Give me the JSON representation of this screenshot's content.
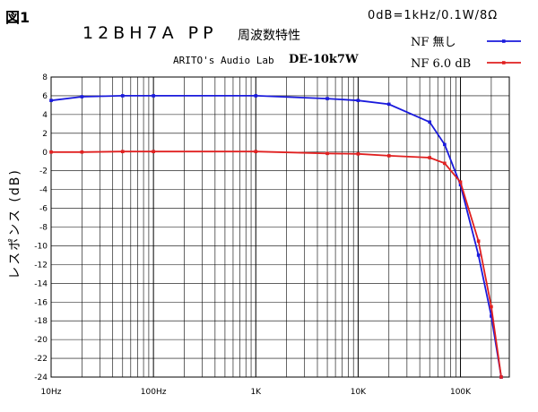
{
  "header": {
    "fig_label": "図1",
    "title": "12BH7A PP",
    "subtitle": "周波数特性",
    "reference": "0dB=1kHz/0.1W/8Ω",
    "credit": "ARITO's Audio Lab",
    "model": "DE-10k7W"
  },
  "colors": {
    "grid": "#000000",
    "nf_none": "#1a1adc",
    "nf_6db": "#e02020"
  },
  "chart_data": {
    "type": "line",
    "title": "12BH7A PP 周波数特性",
    "xlabel": "",
    "ylabel": "レスポンス (dB)",
    "xscale": "log",
    "xlim": [
      10,
      300000
    ],
    "ylim": [
      -24,
      8
    ],
    "grid": true,
    "legend_position": "top-right",
    "x_tick_labels": [
      "10Hz",
      "100Hz",
      "1K",
      "10K",
      "100K"
    ],
    "y_tick_labels": [
      "8",
      "6",
      "4",
      "2",
      "0",
      "-2",
      "-4",
      "-6",
      "-8",
      "-10",
      "-12",
      "-14",
      "-16",
      "-18",
      "-20",
      "-22",
      "-24"
    ],
    "series": [
      {
        "name": "NF 無し",
        "x": [
          10,
          20,
          50,
          100,
          1000,
          5000,
          10000,
          20000,
          50000,
          70000,
          100000,
          150000,
          200000,
          250000
        ],
        "y": [
          5.5,
          5.9,
          6.0,
          6.0,
          6.0,
          5.7,
          5.5,
          5.1,
          3.2,
          0.8,
          -3.5,
          -11.0,
          -17.5,
          -24.0
        ]
      },
      {
        "name": "NF 6.0 dB",
        "x": [
          10,
          20,
          50,
          100,
          1000,
          5000,
          10000,
          20000,
          50000,
          70000,
          100000,
          150000,
          200000,
          250000
        ],
        "y": [
          0.0,
          0.0,
          0.05,
          0.05,
          0.05,
          -0.15,
          -0.2,
          -0.4,
          -0.6,
          -1.2,
          -3.2,
          -9.5,
          -16.5,
          -24.0
        ]
      }
    ]
  }
}
